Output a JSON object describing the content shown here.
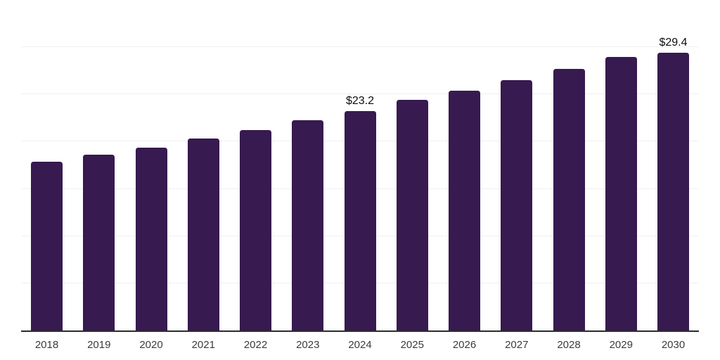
{
  "chart_data": {
    "type": "bar",
    "categories": [
      "2018",
      "2019",
      "2020",
      "2021",
      "2022",
      "2023",
      "2024",
      "2025",
      "2026",
      "2027",
      "2028",
      "2029",
      "2030"
    ],
    "values": [
      17.9,
      18.6,
      19.4,
      20.3,
      21.2,
      22.3,
      23.2,
      24.4,
      25.4,
      26.5,
      27.7,
      29.0,
      29.4
    ],
    "data_labels": {
      "2024": "$23.2",
      "2030": "$29.4"
    },
    "title": "",
    "xlabel": "",
    "ylabel": "",
    "ylim": [
      0,
      35
    ],
    "grid": true,
    "gridline_step": 5,
    "legend": "none",
    "colors": {
      "bar": "#371a50",
      "axis_line": "#2b2b2b",
      "gridline": "#f0f0f0",
      "tick_label": "#3b3b3b",
      "data_label": "#0d0d0d",
      "background": "#ffffff"
    }
  }
}
